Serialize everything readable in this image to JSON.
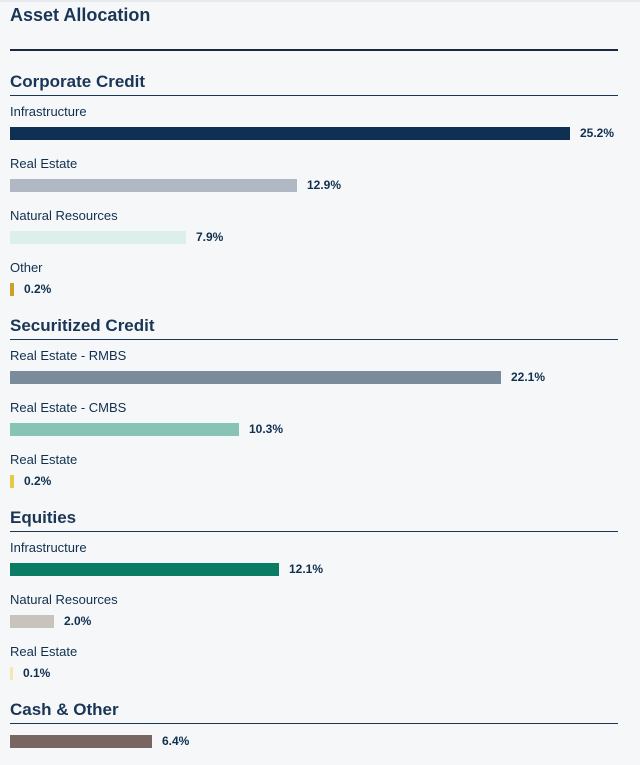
{
  "header": {
    "title": "Asset Allocation"
  },
  "chart_data": {
    "type": "bar",
    "orientation": "horizontal",
    "title": "Asset Allocation",
    "unit": "%",
    "max_value": 25.2,
    "groups": [
      {
        "name": "Corporate Credit",
        "items": [
          {
            "label": "Infrastructure",
            "value": 25.2,
            "value_label": "25.2%",
            "color": "#0f3052"
          },
          {
            "label": "Real Estate",
            "value": 12.9,
            "value_label": "12.9%",
            "color": "#b0b8c4"
          },
          {
            "label": "Natural Resources",
            "value": 7.9,
            "value_label": "7.9%",
            "color": "#dcefeb"
          },
          {
            "label": "Other",
            "value": 0.2,
            "value_label": "0.2%",
            "color": "#c9a227"
          }
        ]
      },
      {
        "name": "Securitized Credit",
        "items": [
          {
            "label": "Real Estate - RMBS",
            "value": 22.1,
            "value_label": "22.1%",
            "color": "#7a8c9c"
          },
          {
            "label": "Real Estate - CMBS",
            "value": 10.3,
            "value_label": "10.3%",
            "color": "#88c4b6"
          },
          {
            "label": "Real Estate",
            "value": 0.2,
            "value_label": "0.2%",
            "color": "#e3cc45"
          }
        ]
      },
      {
        "name": "Equities",
        "items": [
          {
            "label": "Infrastructure",
            "value": 12.1,
            "value_label": "12.1%",
            "color": "#0a7c63"
          },
          {
            "label": "Natural Resources",
            "value": 2.0,
            "value_label": "2.0%",
            "color": "#c9c3be"
          },
          {
            "label": "Real Estate",
            "value": 0.1,
            "value_label": "0.1%",
            "color": "#f3e7b4"
          }
        ]
      },
      {
        "name": "Cash & Other",
        "items": [
          {
            "label": "",
            "value": 6.4,
            "value_label": "6.4%",
            "color": "#776661"
          }
        ]
      }
    ]
  }
}
